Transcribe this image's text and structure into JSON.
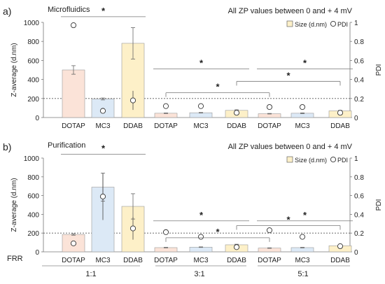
{
  "figure": {
    "frr_label": "FRR",
    "frr_groups": [
      "1:1",
      "3:1",
      "5:1"
    ]
  },
  "chart_data": [
    {
      "type": "bar",
      "panel_label": "a)",
      "title": "Microfluidics",
      "annotation": "All ZP values between 0 and + 4 mV",
      "ylabel": "Z-average (d.nm)",
      "y2label": "PDI",
      "ylim": [
        0,
        1000
      ],
      "y2lim": [
        0,
        1
      ],
      "yticks": [
        "0",
        "200",
        "400",
        "600",
        "800",
        "1000"
      ],
      "y2ticks": [
        "0",
        "0.2",
        "0.4",
        "0.6",
        "0.8",
        "1"
      ],
      "reference_line_pdi": 0.2,
      "legend": {
        "bar": "Size (d.nm)",
        "marker": "PDI",
        "position": "top-right"
      },
      "categories": [
        "DOTAP",
        "MC3",
        "DDAB",
        "DOTAP",
        "MC3",
        "DDAB",
        "DOTAP",
        "MC3",
        "DDAB"
      ],
      "colors": [
        "#fbe3d8",
        "#dce9f6",
        "#fdf0c8",
        "#fbe3d8",
        "#dce9f6",
        "#fdf0c8",
        "#fbe3d8",
        "#dce9f6",
        "#fdf0c8"
      ],
      "size": [
        500,
        195,
        780,
        45,
        50,
        75,
        40,
        45,
        70
      ],
      "size_err": [
        45,
        10,
        165,
        3,
        3,
        6,
        3,
        4,
        5
      ],
      "pdi": [
        0.97,
        0.07,
        0.18,
        0.12,
        0.12,
        0.05,
        0.11,
        0.11,
        0.05
      ],
      "pdi_err": [
        0,
        0.03,
        0.1,
        0,
        0,
        0,
        0,
        0.02,
        0
      ],
      "significance": [
        {
          "from": 0,
          "to": 2,
          "type": "line",
          "level": 1060,
          "label": "*"
        },
        {
          "from": 3,
          "to": 5,
          "type": "line",
          "level": 510,
          "label": "*"
        },
        {
          "from": 6,
          "to": 8,
          "type": "line",
          "level": 510,
          "label": "*"
        },
        {
          "from": 3,
          "to": 6,
          "type": "bracket",
          "level": 260,
          "label": "*"
        },
        {
          "from": 5,
          "to": 8,
          "type": "bracket",
          "level": 380,
          "label": "*"
        }
      ]
    },
    {
      "type": "bar",
      "panel_label": "b)",
      "title": "Purification",
      "annotation": "All ZP values between 0 and + 4 mV",
      "ylabel": "Z-average (d.nm)",
      "y2label": "PDI",
      "ylim": [
        0,
        1000
      ],
      "y2lim": [
        0,
        1
      ],
      "yticks": [
        "0",
        "200",
        "400",
        "600",
        "800",
        "1000"
      ],
      "y2ticks": [
        "0",
        "0.2",
        "0.4",
        "0.6",
        "0.8",
        "1"
      ],
      "reference_line_pdi": 0.2,
      "legend": {
        "bar": "Size (d.nm)",
        "marker": "PDI",
        "position": "top-right"
      },
      "categories": [
        "DOTAP",
        "MC3",
        "DDAB",
        "DOTAP",
        "MC3",
        "DDAB",
        "DOTAP",
        "MC3",
        "DDAB"
      ],
      "colors": [
        "#fbe3d8",
        "#dce9f6",
        "#fdf0c8",
        "#fbe3d8",
        "#dce9f6",
        "#fdf0c8",
        "#fbe3d8",
        "#dce9f6",
        "#fdf0c8"
      ],
      "size": [
        185,
        690,
        485,
        45,
        50,
        75,
        40,
        45,
        65
      ],
      "size_err": [
        8,
        150,
        135,
        3,
        3,
        6,
        3,
        3,
        5
      ],
      "pdi": [
        0.09,
        0.59,
        0.25,
        0.21,
        0.16,
        0.05,
        0.23,
        0.16,
        0.06
      ],
      "pdi_err": [
        0,
        0.25,
        0.12,
        0,
        0,
        0,
        0,
        0,
        0
      ],
      "significance": [
        {
          "from": 0,
          "to": 2,
          "type": "line",
          "level": 1040,
          "label": "*"
        },
        {
          "from": 3,
          "to": 5,
          "type": "line",
          "level": 330,
          "label": "*"
        },
        {
          "from": 6,
          "to": 8,
          "type": "line",
          "level": 330,
          "label": "*"
        },
        {
          "from": 3,
          "to": 6,
          "type": "bracket",
          "level": 150,
          "label": "*"
        },
        {
          "from": 5,
          "to": 8,
          "type": "bracket",
          "level": 280,
          "label": "*"
        }
      ]
    }
  ]
}
